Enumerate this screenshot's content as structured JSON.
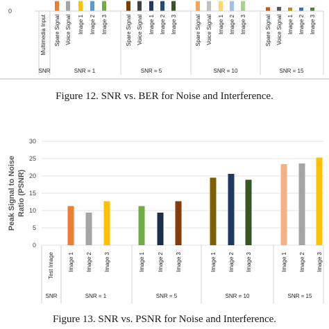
{
  "chart_data": [
    {
      "type": "bar",
      "title": "",
      "ylabel": "",
      "ytick_labels_visible": [
        "0"
      ],
      "categories": [
        "Multimedia Input",
        "Spare Signal",
        "Voice Signal",
        "Image 1",
        "Image 2",
        "Image 3",
        "Spare Signal",
        "Voice Signal",
        "Image 1",
        "Image 2",
        "Image 3",
        "Spare Signal",
        "Voice Signal",
        "Image 1",
        "Image 2",
        "Image 3",
        "Spare Signal",
        "Voice Signal",
        "Image 1",
        "Image 2",
        "Image 3"
      ],
      "values": [
        0,
        0.9,
        0.9,
        0.9,
        0.9,
        0.9,
        0.9,
        0.9,
        0.9,
        0.9,
        0.9,
        0.9,
        0.9,
        0.9,
        0.9,
        0.9,
        0.35,
        0.38,
        0.32,
        0.32,
        0.32
      ],
      "colors": [
        "#ffffff",
        "#ed7d31",
        "#a5a5a5",
        "#ffc000",
        "#5b9bd5",
        "#70ad47",
        "#7b3f00",
        "#404040",
        "#203864",
        "#1f4e79",
        "#375623",
        "#f4a460",
        "#c0c0c0",
        "#ffd966",
        "#9dc3e6",
        "#a9d18e",
        "#c55a11",
        "#595959",
        "#bf9000",
        "#2e75b6",
        "#548235"
      ],
      "group_labels": [
        "SNR",
        "SNR = 1",
        "SNR = 5",
        "SNR = 10",
        "SNR = 15"
      ]
    },
    {
      "type": "bar",
      "title": "",
      "ylabel": "Peak Signal to Noise Ratio (PSNR)",
      "ylim": [
        0,
        30
      ],
      "yticks": [
        0,
        5,
        10,
        15,
        20,
        25,
        30
      ],
      "grid": true,
      "categories": [
        "Test Image",
        "Image 1",
        "Image 2",
        "Image 3",
        "Image 1",
        "Image 2",
        "Image 3",
        "Image 1",
        "Image 2",
        "Image 3",
        "Image 1",
        "Image 2",
        "Image 3"
      ],
      "values": [
        0,
        11.3,
        9.4,
        12.7,
        11.3,
        9.4,
        12.7,
        19.5,
        20.6,
        18.9,
        23.4,
        23.6,
        25.3
      ],
      "colors": [
        "#ffffff",
        "#ed7d31",
        "#a5a5a5",
        "#ffc000",
        "#70ad47",
        "#1f2d4d",
        "#843c0c",
        "#7f6000",
        "#203864",
        "#375623",
        "#f4b183",
        "#a5a5a5",
        "#ffc000"
      ],
      "group_labels": [
        "SNR",
        "SNR = 1",
        "SNR = 5",
        "SNR = 10",
        "SNR = 15"
      ]
    }
  ],
  "captions": {
    "fig12": "Figure 12. SNR vs. BER for Noise and Interference.",
    "fig13": "Figure 13. SNR vs. PSNR for Noise and Interference."
  }
}
